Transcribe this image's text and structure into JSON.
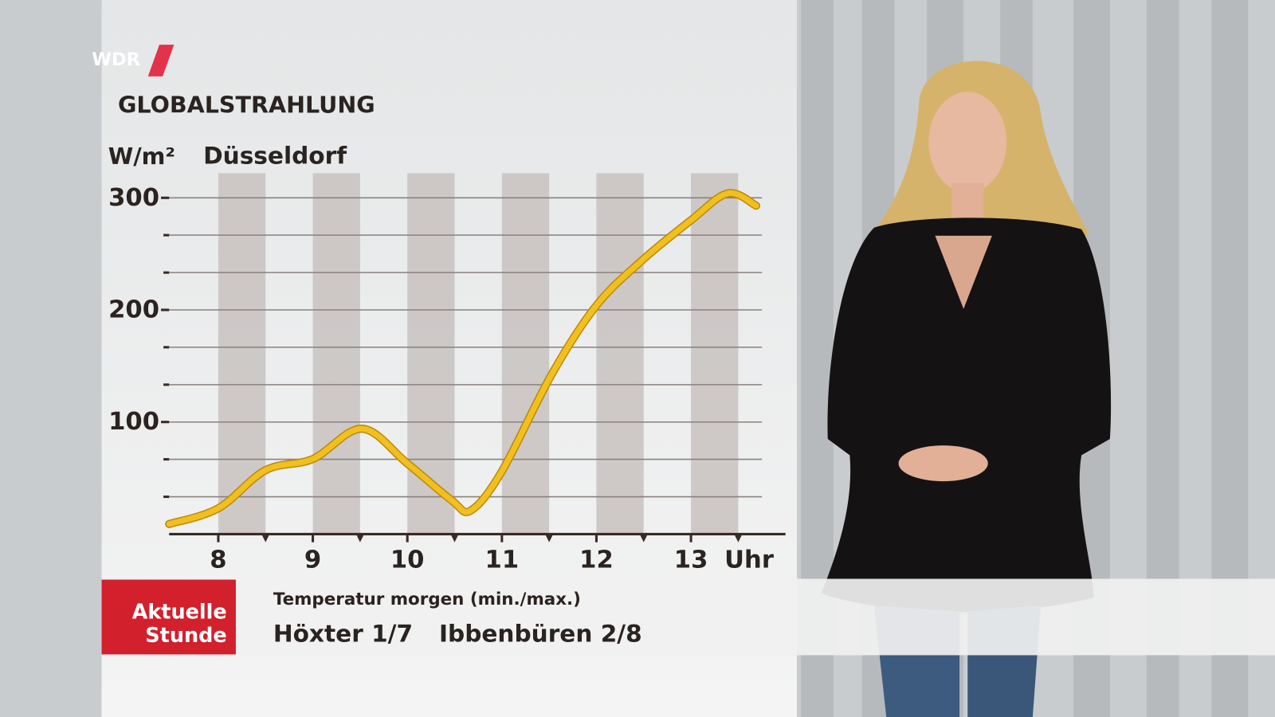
{
  "logo": "WDR",
  "chart_data": {
    "type": "line",
    "title": "GLOBALSTRAHLUNG",
    "subtitle": "Düsseldorf",
    "y_label": "W/m²",
    "x_label": "Uhr",
    "x": [
      7.48,
      8,
      8.5,
      9,
      9.52,
      10,
      10.47,
      10.67,
      11,
      11.53,
      12,
      12.48,
      13,
      13.39,
      13.69
    ],
    "series": [
      {
        "name": "Globalstrahlung",
        "color": "#f2c01e",
        "values": [
          9,
          23,
          57,
          67,
          94,
          63,
          30,
          21,
          56,
          143,
          204,
          244,
          280,
          304,
          293
        ]
      }
    ],
    "xlim": [
      7.48,
      14.0
    ],
    "xticks": [
      8,
      9,
      10,
      11,
      12,
      13
    ],
    "ylim": [
      0,
      322
    ],
    "yticks": [
      100,
      200,
      300
    ],
    "yminor_ticks": [
      33.3,
      66.7,
      133.3,
      166.7,
      233.3,
      266.7
    ],
    "grid": true
  },
  "ticker": {
    "brand_lines": [
      "Aktuelle",
      "Stunde"
    ],
    "heading": "Temperatur morgen (min./max.)",
    "items": [
      "Höxter 1/7",
      "Ibbenbüren 2/8"
    ]
  }
}
